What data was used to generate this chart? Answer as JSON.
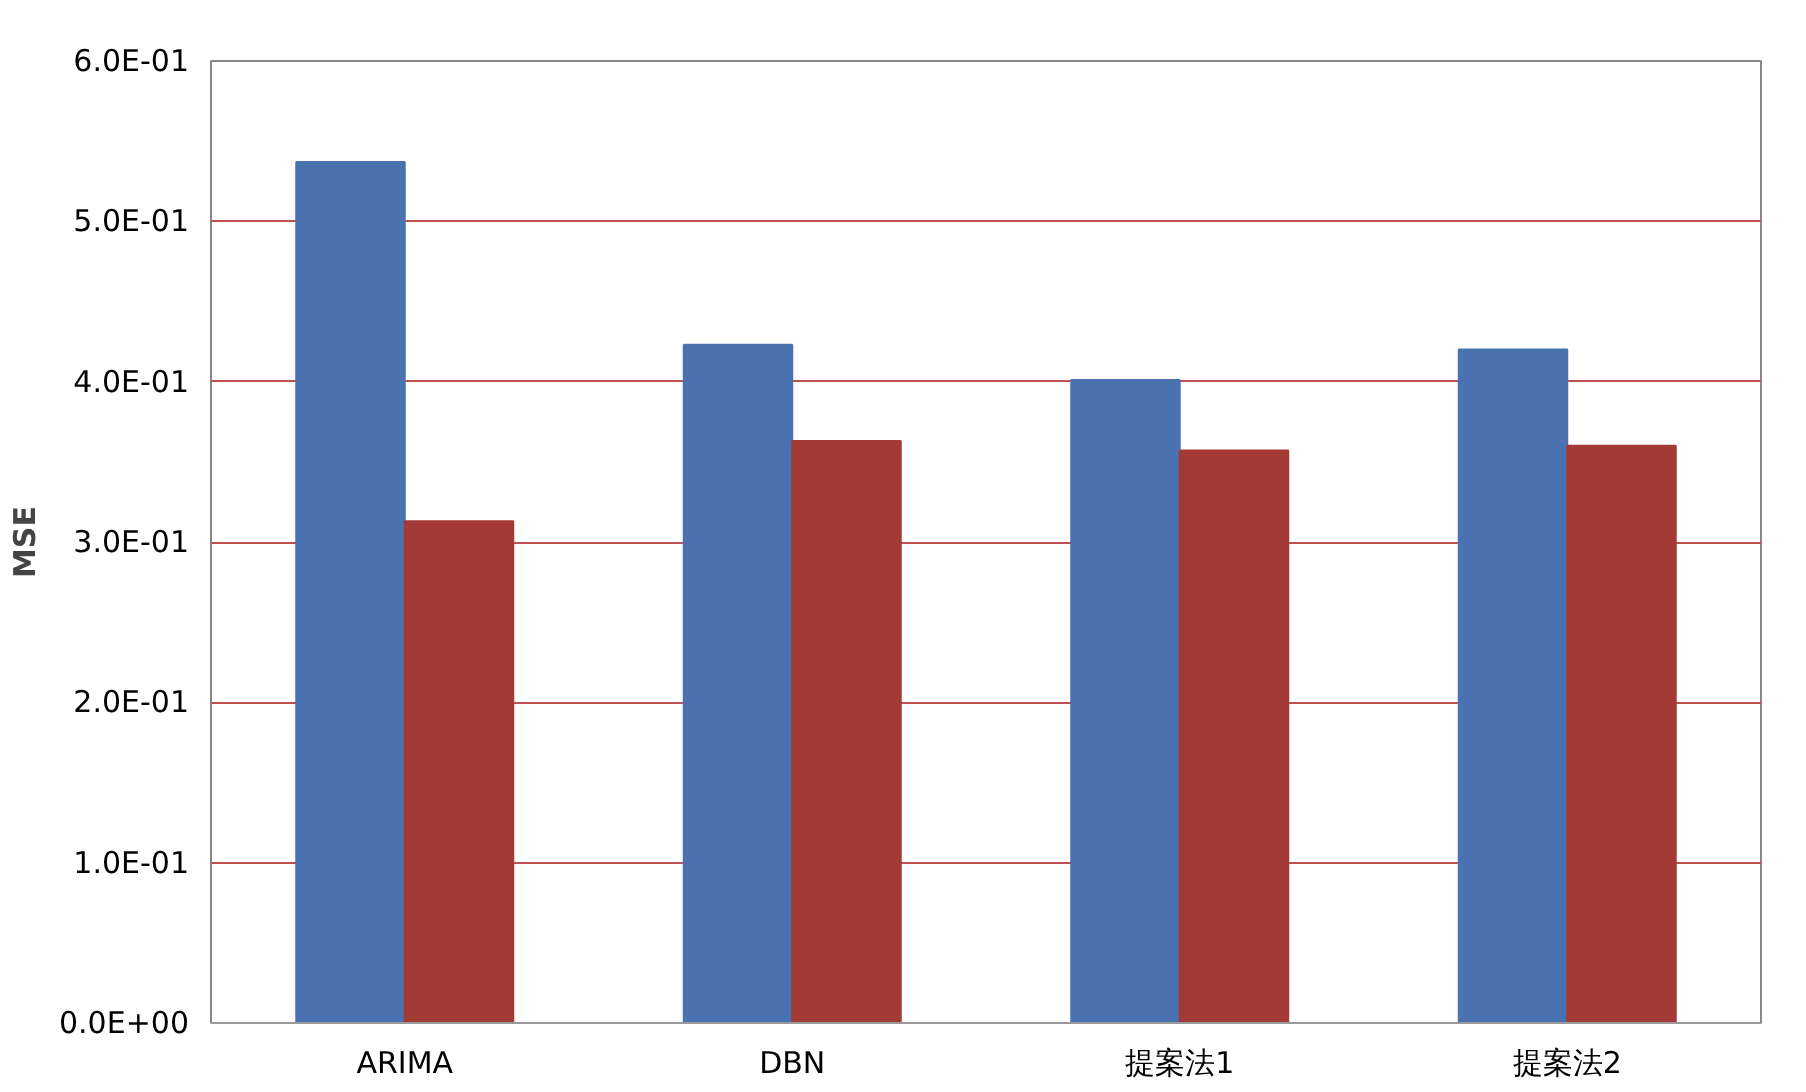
{
  "chart_data": {
    "type": "bar",
    "ylabel": "MSE",
    "categories": [
      "ARIMA",
      "DBN",
      "提案法1",
      "提案法2"
    ],
    "series": [
      {
        "color": "#4a72b0",
        "values": [
          0.537,
          0.423,
          0.401,
          0.42
        ]
      },
      {
        "color": "#a33a36",
        "values": [
          0.313,
          0.363,
          0.357,
          0.36
        ]
      }
    ],
    "ylim": [
      0,
      0.6
    ],
    "yticks": [
      {
        "value": 0,
        "label": "0.0E+00"
      },
      {
        "value": 0.1,
        "label": "1.0E-01"
      },
      {
        "value": 0.2,
        "label": "2.0E-01"
      },
      {
        "value": 0.3,
        "label": "3.0E-01"
      },
      {
        "value": 0.4,
        "label": "4.0E-01"
      },
      {
        "value": 0.5,
        "label": "5.0E-01"
      },
      {
        "value": 0.6,
        "label": "6.0E-01"
      }
    ],
    "grid": "y"
  }
}
